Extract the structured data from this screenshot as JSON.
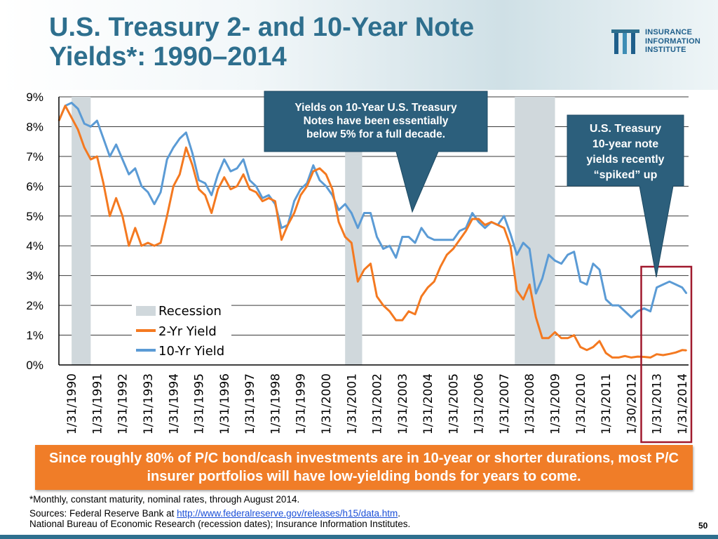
{
  "slide": {
    "title_line1": "U.S. Treasury 2- and 10-Year Note",
    "title_line2": "Yields*: 1990–2014",
    "page_number": "50"
  },
  "logo": {
    "line1": "INSURANCE",
    "line2": "INFORMATION",
    "line3": "INSTITUTE",
    "mark": "III"
  },
  "callouts": {
    "left": {
      "line1": "Yields on 10-Year U.S. Treasury",
      "line2": "Notes have been essentially",
      "line3": "below 5% for a full decade."
    },
    "right": {
      "line1": "U.S. Treasury",
      "line2": "10-year note",
      "line3": "yields recently",
      "line4": "“spiked” up"
    }
  },
  "banner": {
    "text": "Since roughly 80% of P/C bond/cash investments are in 10-year or shorter durations, most P/C insurer portfolios will have low-yielding bonds for years to come."
  },
  "footer": {
    "footnote": "*Monthly, constant maturity, nominal rates, through August 2014.",
    "sources_prefix": "Sources: Federal Reserve Bank at ",
    "sources_link": "http://www.federalreserve.gov/releases/h15/data.htm",
    "sources_suffix": ".",
    "sources_line2": "National Bureau of Economic Research (recession dates); Insurance Information Institutes."
  },
  "colors": {
    "title": "#2e6f8e",
    "two_year": "#f47920",
    "ten_year": "#5b9bd5",
    "recession": "#d0d8dc",
    "callout_bg": "#2c5f7c",
    "banner_bg": "#f07d28",
    "highlight_box": "#a0192d"
  },
  "chart_data": {
    "type": "line",
    "title": "U.S. Treasury 2- and 10-Year Note Yields*: 1990–2014",
    "xlabel": "",
    "ylabel": "",
    "ylim": [
      0,
      9
    ],
    "xlim": [
      1990.0,
      2014.75
    ],
    "y_ticks": [
      0,
      1,
      2,
      3,
      4,
      5,
      6,
      7,
      8,
      9
    ],
    "y_tick_labels": [
      "0%",
      "1%",
      "2%",
      "3%",
      "4%",
      "5%",
      "6%",
      "7%",
      "8%",
      "9%"
    ],
    "x_ticks": [
      1990,
      1991,
      1992,
      1993,
      1994,
      1995,
      1996,
      1997,
      1998,
      1999,
      2000,
      2001,
      2002,
      2003,
      2004,
      2005,
      2006,
      2007,
      2008,
      2009,
      2010,
      2011,
      2012,
      2013,
      2014
    ],
    "x_tick_labels": [
      "1/31/1990",
      "1/31/1991",
      "1/31/1992",
      "1/31/1993",
      "1/31/1994",
      "1/31/1995",
      "1/31/1996",
      "1/31/1997",
      "1/31/1998",
      "1/31/1999",
      "1/31/2000",
      "1/31/2001",
      "1/31/2002",
      "1/31/2003",
      "1/31/2004",
      "1/31/2005",
      "1/31/2006",
      "1/31/2007",
      "1/31/2008",
      "1/31/2009",
      "1/31/2010",
      "1/31/2011",
      "1/30/2012",
      "1/31/2013",
      "1/31/2014"
    ],
    "grid": true,
    "legend": {
      "position": "bottom-left",
      "entries": [
        "Recession",
        "2-Yr Yield",
        "10-Yr Yield"
      ]
    },
    "recessions": [
      {
        "start": 1990.5,
        "end": 1991.25
      },
      {
        "start": 2001.25,
        "end": 2001.92
      },
      {
        "start": 2007.92,
        "end": 2009.5
      }
    ],
    "highlight_range": {
      "start": 2013.0,
      "end": 2014.75
    },
    "series": [
      {
        "name": "2-Yr Yield",
        "points": [
          [
            1990.0,
            8.2
          ],
          [
            1990.25,
            8.7
          ],
          [
            1990.5,
            8.3
          ],
          [
            1990.75,
            7.9
          ],
          [
            1991.0,
            7.3
          ],
          [
            1991.25,
            6.9
          ],
          [
            1991.5,
            7.0
          ],
          [
            1991.75,
            6.1
          ],
          [
            1992.0,
            5.0
          ],
          [
            1992.25,
            5.6
          ],
          [
            1992.5,
            5.0
          ],
          [
            1992.75,
            4.0
          ],
          [
            1993.0,
            4.6
          ],
          [
            1993.25,
            4.0
          ],
          [
            1993.5,
            4.1
          ],
          [
            1993.75,
            4.0
          ],
          [
            1994.0,
            4.1
          ],
          [
            1994.25,
            5.0
          ],
          [
            1994.5,
            6.0
          ],
          [
            1994.75,
            6.4
          ],
          [
            1995.0,
            7.3
          ],
          [
            1995.25,
            6.7
          ],
          [
            1995.5,
            5.9
          ],
          [
            1995.75,
            5.7
          ],
          [
            1996.0,
            5.1
          ],
          [
            1996.25,
            5.9
          ],
          [
            1996.5,
            6.3
          ],
          [
            1996.75,
            5.9
          ],
          [
            1997.0,
            6.0
          ],
          [
            1997.25,
            6.4
          ],
          [
            1997.5,
            5.9
          ],
          [
            1997.75,
            5.8
          ],
          [
            1998.0,
            5.5
          ],
          [
            1998.25,
            5.6
          ],
          [
            1998.5,
            5.5
          ],
          [
            1998.75,
            4.2
          ],
          [
            1999.0,
            4.7
          ],
          [
            1999.25,
            5.1
          ],
          [
            1999.5,
            5.7
          ],
          [
            1999.75,
            6.0
          ],
          [
            2000.0,
            6.5
          ],
          [
            2000.25,
            6.6
          ],
          [
            2000.5,
            6.4
          ],
          [
            2000.75,
            5.9
          ],
          [
            2001.0,
            4.8
          ],
          [
            2001.25,
            4.3
          ],
          [
            2001.5,
            4.1
          ],
          [
            2001.75,
            2.8
          ],
          [
            2002.0,
            3.2
          ],
          [
            2002.25,
            3.4
          ],
          [
            2002.5,
            2.3
          ],
          [
            2002.75,
            2.0
          ],
          [
            2003.0,
            1.8
          ],
          [
            2003.25,
            1.5
          ],
          [
            2003.5,
            1.5
          ],
          [
            2003.75,
            1.8
          ],
          [
            2004.0,
            1.7
          ],
          [
            2004.25,
            2.3
          ],
          [
            2004.5,
            2.6
          ],
          [
            2004.75,
            2.8
          ],
          [
            2005.0,
            3.3
          ],
          [
            2005.25,
            3.7
          ],
          [
            2005.5,
            3.9
          ],
          [
            2005.75,
            4.2
          ],
          [
            2006.0,
            4.5
          ],
          [
            2006.25,
            4.9
          ],
          [
            2006.5,
            4.9
          ],
          [
            2006.75,
            4.7
          ],
          [
            2007.0,
            4.8
          ],
          [
            2007.25,
            4.7
          ],
          [
            2007.5,
            4.6
          ],
          [
            2007.75,
            4.0
          ],
          [
            2008.0,
            2.5
          ],
          [
            2008.25,
            2.2
          ],
          [
            2008.5,
            2.7
          ],
          [
            2008.75,
            1.6
          ],
          [
            2009.0,
            0.9
          ],
          [
            2009.25,
            0.9
          ],
          [
            2009.5,
            1.1
          ],
          [
            2009.75,
            0.9
          ],
          [
            2010.0,
            0.9
          ],
          [
            2010.25,
            1.0
          ],
          [
            2010.5,
            0.6
          ],
          [
            2010.75,
            0.5
          ],
          [
            2011.0,
            0.6
          ],
          [
            2011.25,
            0.8
          ],
          [
            2011.5,
            0.4
          ],
          [
            2011.75,
            0.25
          ],
          [
            2012.0,
            0.25
          ],
          [
            2012.25,
            0.3
          ],
          [
            2012.5,
            0.25
          ],
          [
            2012.75,
            0.28
          ],
          [
            2013.0,
            0.27
          ],
          [
            2013.25,
            0.25
          ],
          [
            2013.5,
            0.36
          ],
          [
            2013.75,
            0.33
          ],
          [
            2014.0,
            0.37
          ],
          [
            2014.25,
            0.42
          ],
          [
            2014.5,
            0.5
          ],
          [
            2014.67,
            0.49
          ]
        ]
      },
      {
        "name": "10-Yr Yield",
        "points": [
          [
            1990.0,
            8.2
          ],
          [
            1990.25,
            8.7
          ],
          [
            1990.5,
            8.8
          ],
          [
            1990.75,
            8.6
          ],
          [
            1991.0,
            8.1
          ],
          [
            1991.25,
            8.0
          ],
          [
            1991.5,
            8.2
          ],
          [
            1991.75,
            7.6
          ],
          [
            1992.0,
            7.0
          ],
          [
            1992.25,
            7.4
          ],
          [
            1992.5,
            6.9
          ],
          [
            1992.75,
            6.4
          ],
          [
            1993.0,
            6.6
          ],
          [
            1993.25,
            6.0
          ],
          [
            1993.5,
            5.8
          ],
          [
            1993.75,
            5.4
          ],
          [
            1994.0,
            5.8
          ],
          [
            1994.25,
            6.9
          ],
          [
            1994.5,
            7.3
          ],
          [
            1994.75,
            7.6
          ],
          [
            1995.0,
            7.8
          ],
          [
            1995.25,
            7.1
          ],
          [
            1995.5,
            6.2
          ],
          [
            1995.75,
            6.1
          ],
          [
            1996.0,
            5.7
          ],
          [
            1996.25,
            6.4
          ],
          [
            1996.5,
            6.9
          ],
          [
            1996.75,
            6.5
          ],
          [
            1997.0,
            6.6
          ],
          [
            1997.25,
            6.9
          ],
          [
            1997.5,
            6.2
          ],
          [
            1997.75,
            6.0
          ],
          [
            1998.0,
            5.6
          ],
          [
            1998.25,
            5.7
          ],
          [
            1998.5,
            5.4
          ],
          [
            1998.75,
            4.6
          ],
          [
            1999.0,
            4.7
          ],
          [
            1999.25,
            5.5
          ],
          [
            1999.5,
            5.9
          ],
          [
            1999.75,
            6.1
          ],
          [
            2000.0,
            6.7
          ],
          [
            2000.25,
            6.2
          ],
          [
            2000.5,
            6.0
          ],
          [
            2000.75,
            5.7
          ],
          [
            2001.0,
            5.2
          ],
          [
            2001.25,
            5.4
          ],
          [
            2001.5,
            5.1
          ],
          [
            2001.75,
            4.6
          ],
          [
            2002.0,
            5.1
          ],
          [
            2002.25,
            5.1
          ],
          [
            2002.5,
            4.3
          ],
          [
            2002.75,
            3.9
          ],
          [
            2003.0,
            4.0
          ],
          [
            2003.25,
            3.6
          ],
          [
            2003.5,
            4.3
          ],
          [
            2003.75,
            4.3
          ],
          [
            2004.0,
            4.1
          ],
          [
            2004.25,
            4.6
          ],
          [
            2004.5,
            4.3
          ],
          [
            2004.75,
            4.2
          ],
          [
            2005.0,
            4.2
          ],
          [
            2005.25,
            4.2
          ],
          [
            2005.5,
            4.2
          ],
          [
            2005.75,
            4.5
          ],
          [
            2006.0,
            4.6
          ],
          [
            2006.25,
            5.1
          ],
          [
            2006.5,
            4.8
          ],
          [
            2006.75,
            4.6
          ],
          [
            2007.0,
            4.8
          ],
          [
            2007.25,
            4.7
          ],
          [
            2007.5,
            5.0
          ],
          [
            2007.75,
            4.4
          ],
          [
            2008.0,
            3.7
          ],
          [
            2008.25,
            4.1
          ],
          [
            2008.5,
            3.9
          ],
          [
            2008.75,
            2.4
          ],
          [
            2009.0,
            2.9
          ],
          [
            2009.25,
            3.7
          ],
          [
            2009.5,
            3.5
          ],
          [
            2009.75,
            3.4
          ],
          [
            2010.0,
            3.7
          ],
          [
            2010.25,
            3.8
          ],
          [
            2010.5,
            2.8
          ],
          [
            2010.75,
            2.7
          ],
          [
            2011.0,
            3.4
          ],
          [
            2011.25,
            3.2
          ],
          [
            2011.5,
            2.2
          ],
          [
            2011.75,
            2.0
          ],
          [
            2012.0,
            2.0
          ],
          [
            2012.25,
            1.8
          ],
          [
            2012.5,
            1.6
          ],
          [
            2012.75,
            1.8
          ],
          [
            2013.0,
            1.9
          ],
          [
            2013.25,
            1.8
          ],
          [
            2013.5,
            2.6
          ],
          [
            2013.75,
            2.7
          ],
          [
            2014.0,
            2.8
          ],
          [
            2014.25,
            2.7
          ],
          [
            2014.5,
            2.6
          ],
          [
            2014.67,
            2.4
          ]
        ]
      }
    ]
  }
}
